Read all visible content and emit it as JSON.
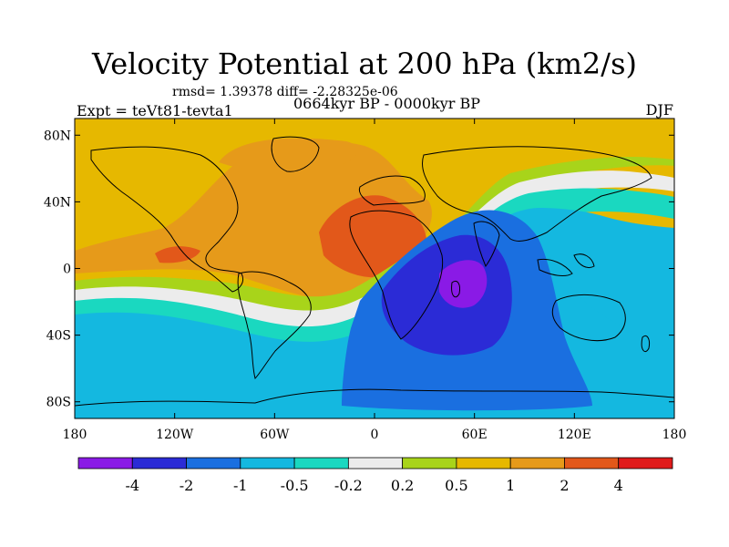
{
  "header": {
    "title": "Velocity Potential at 200 hPa (km2/s)",
    "rmsd_line": "rmsd= 1.39378 diff= -2.28325e-06",
    "experiment": "Expt = teVt81-tevta1",
    "period": "0664kyr BP - 0000kyr BP",
    "season": "DJF"
  },
  "map": {
    "projection": "cylindrical-equidistant",
    "lon_range": [
      -180,
      180
    ],
    "lat_range": [
      -90,
      90
    ],
    "x_ticks": [
      {
        "value": -180,
        "label": "180"
      },
      {
        "value": -120,
        "label": "120W"
      },
      {
        "value": -60,
        "label": "60W"
      },
      {
        "value": 0,
        "label": "0"
      },
      {
        "value": 60,
        "label": "60E"
      },
      {
        "value": 120,
        "label": "120E"
      },
      {
        "value": 180,
        "label": "180"
      }
    ],
    "y_ticks": [
      {
        "value": 80,
        "label": "80N"
      },
      {
        "value": 40,
        "label": "40N"
      },
      {
        "value": 0,
        "label": "0"
      },
      {
        "value": -40,
        "label": "40S"
      },
      {
        "value": -80,
        "label": "80S"
      }
    ],
    "background_value_color": "#e6b800",
    "regions": [
      {
        "name": "north-warm-orange",
        "color": "#e69a1a"
      },
      {
        "name": "africa-red",
        "color": "#e2581a"
      },
      {
        "name": "pacific-red",
        "color": "#e2581a"
      },
      {
        "name": "indian-ocean-blue",
        "color": "#1a6fe0"
      },
      {
        "name": "indian-ocean-core",
        "color": "#2b2bd6"
      },
      {
        "name": "madagascar-min",
        "color": "#8a1ae6"
      },
      {
        "name": "south-cyan",
        "color": "#14b8e0"
      },
      {
        "name": "teal-band",
        "color": "#1ad8c0"
      },
      {
        "name": "white-band",
        "color": "#ececec"
      },
      {
        "name": "green-band",
        "color": "#a8d41a"
      }
    ]
  },
  "colorbar": {
    "colors": [
      "#8a1ae6",
      "#2b2bd6",
      "#1a6fe0",
      "#14b8e0",
      "#1ad8c0",
      "#ececec",
      "#a8d41a",
      "#e6b800",
      "#e69a1a",
      "#e2581a",
      "#e01a1a"
    ],
    "labels": [
      "-4",
      "-2",
      "-1",
      "-0.5",
      "-0.2",
      "0.2",
      "0.5",
      "1",
      "2",
      "4"
    ]
  }
}
